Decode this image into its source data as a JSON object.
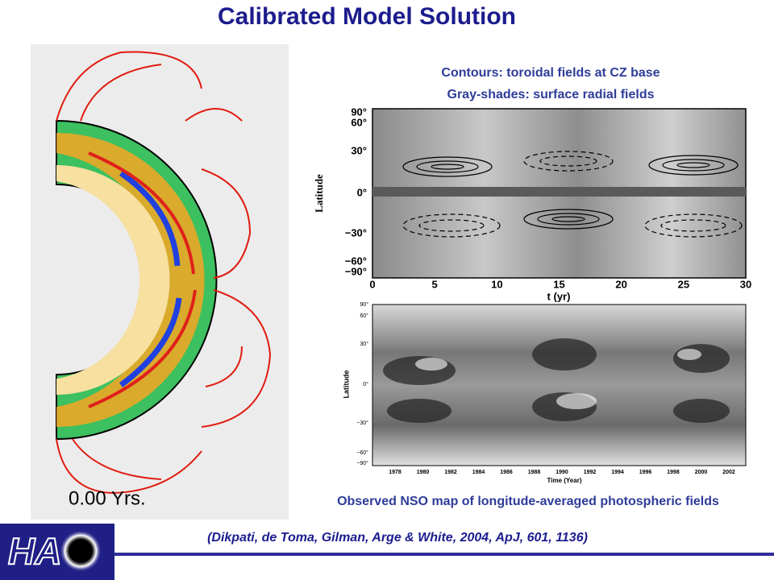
{
  "title": "Calibrated Model Solution",
  "model_panel": {
    "time_label": "0.00 Yrs."
  },
  "top_plot": {
    "caption": [
      "Contours: toroidal fields at CZ base",
      "Gray-shades: surface radial fields"
    ],
    "y_label": "Latitude",
    "x_label": "t (yr)",
    "yticks": [
      "90°",
      "60°",
      "30°",
      "0°",
      "−30°",
      "−60°",
      "−90°"
    ],
    "xticks": [
      "0",
      "5",
      "10",
      "15",
      "20",
      "25",
      "30"
    ]
  },
  "bottom_plot": {
    "caption": "Observed NSO map of longitude-averaged photospheric fields",
    "y_label": "Latitude",
    "x_label": "Time (Year)",
    "yticks": [
      "90°",
      "60°",
      "30°",
      "0°",
      "−30°",
      "−60°",
      "−90°"
    ],
    "xticks": [
      "1978",
      "1980",
      "1982",
      "1984",
      "1986",
      "1988",
      "1990",
      "1992",
      "1994",
      "1996",
      "1998",
      "2000",
      "2002"
    ]
  },
  "citation": "(Dikpati, de Toma, Gilman, Arge & White, 2004, ApJ, 601, 1136)",
  "logo": "HA"
}
